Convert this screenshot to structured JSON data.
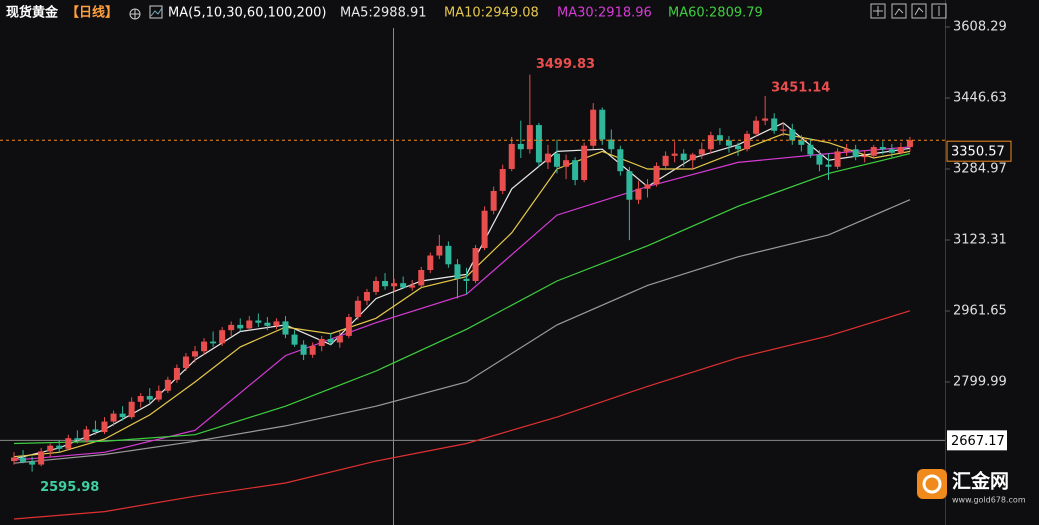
{
  "chart_data": {
    "type": "candlestick",
    "title": "现货黄金",
    "period": "【日线】",
    "indicator": "MA(5,10,30,60,100,200)",
    "up_color": "#e94e4e",
    "down_color": "#2fb79c",
    "ylim": [
      2474.4,
      3647.0
    ],
    "yticks": [
      3608.29,
      3446.63,
      3284.97,
      3123.31,
      2961.65,
      2799.99
    ],
    "crosshair_price": 2667.17,
    "ohlc": [
      [
        2620,
        2640,
        2612,
        2628
      ],
      [
        2628,
        2645,
        2615,
        2618
      ],
      [
        2618,
        2630,
        2595.98,
        2612
      ],
      [
        2612,
        2650,
        2608,
        2642
      ],
      [
        2642,
        2660,
        2630,
        2655
      ],
      [
        2655,
        2668,
        2640,
        2648
      ],
      [
        2648,
        2680,
        2644,
        2672
      ],
      [
        2672,
        2690,
        2660,
        2668
      ],
      [
        2668,
        2700,
        2662,
        2692
      ],
      [
        2692,
        2712,
        2680,
        2686
      ],
      [
        2686,
        2720,
        2682,
        2710
      ],
      [
        2710,
        2735,
        2700,
        2728
      ],
      [
        2728,
        2745,
        2712,
        2720
      ],
      [
        2720,
        2765,
        2716,
        2755
      ],
      [
        2755,
        2775,
        2742,
        2768
      ],
      [
        2768,
        2786,
        2750,
        2760
      ],
      [
        2760,
        2792,
        2755,
        2780
      ],
      [
        2780,
        2812,
        2775,
        2805
      ],
      [
        2805,
        2840,
        2798,
        2832
      ],
      [
        2832,
        2866,
        2825,
        2858
      ],
      [
        2858,
        2882,
        2845,
        2870
      ],
      [
        2870,
        2900,
        2862,
        2892
      ],
      [
        2892,
        2915,
        2880,
        2888
      ],
      [
        2888,
        2925,
        2882,
        2918
      ],
      [
        2918,
        2938,
        2905,
        2930
      ],
      [
        2930,
        2945,
        2915,
        2922
      ],
      [
        2922,
        2950,
        2918,
        2940
      ],
      [
        2940,
        2956,
        2925,
        2935
      ],
      [
        2935,
        2948,
        2918,
        2928
      ],
      [
        2928,
        2945,
        2920,
        2938
      ],
      [
        2938,
        2950,
        2900,
        2908
      ],
      [
        2908,
        2918,
        2880,
        2885
      ],
      [
        2885,
        2895,
        2850,
        2862
      ],
      [
        2862,
        2890,
        2855,
        2882
      ],
      [
        2882,
        2905,
        2870,
        2898
      ],
      [
        2898,
        2912,
        2885,
        2890
      ],
      [
        2890,
        2915,
        2878,
        2905
      ],
      [
        2905,
        2955,
        2900,
        2948
      ],
      [
        2948,
        2995,
        2942,
        2985
      ],
      [
        2985,
        3012,
        2975,
        3005
      ],
      [
        3005,
        3040,
        2998,
        3030
      ],
      [
        3030,
        3048,
        3010,
        3018
      ],
      [
        3018,
        3035,
        3005,
        3025
      ],
      [
        3025,
        3040,
        3012,
        3015
      ],
      [
        3015,
        3032,
        3008,
        3020
      ],
      [
        3020,
        3062,
        3015,
        3055
      ],
      [
        3055,
        3095,
        3048,
        3088
      ],
      [
        3088,
        3135,
        3080,
        3110
      ],
      [
        3110,
        3120,
        3060,
        3068
      ],
      [
        3068,
        3080,
        2990,
        3035
      ],
      [
        3035,
        3060,
        3000,
        3030
      ],
      [
        3030,
        3112,
        3025,
        3105
      ],
      [
        3105,
        3200,
        3100,
        3190
      ],
      [
        3190,
        3245,
        3182,
        3235
      ],
      [
        3235,
        3295,
        3228,
        3285
      ],
      [
        3285,
        3358,
        3280,
        3342
      ],
      [
        3342,
        3395,
        3310,
        3330
      ],
      [
        3330,
        3499.83,
        3320,
        3385
      ],
      [
        3385,
        3390,
        3290,
        3300
      ],
      [
        3300,
        3340,
        3285,
        3320
      ],
      [
        3320,
        3352,
        3275,
        3290
      ],
      [
        3290,
        3318,
        3262,
        3305
      ],
      [
        3305,
        3312,
        3248,
        3260
      ],
      [
        3260,
        3345,
        3255,
        3338
      ],
      [
        3338,
        3435,
        3330,
        3420
      ],
      [
        3420,
        3425,
        3340,
        3352
      ],
      [
        3352,
        3375,
        3320,
        3330
      ],
      [
        3330,
        3338,
        3270,
        3280
      ],
      [
        3280,
        3290,
        3123,
        3215
      ],
      [
        3215,
        3258,
        3205,
        3240
      ],
      [
        3240,
        3262,
        3220,
        3250
      ],
      [
        3250,
        3300,
        3245,
        3292
      ],
      [
        3292,
        3325,
        3282,
        3315
      ],
      [
        3315,
        3348,
        3300,
        3320
      ],
      [
        3320,
        3330,
        3290,
        3305
      ],
      [
        3305,
        3322,
        3285,
        3318
      ],
      [
        3318,
        3345,
        3308,
        3330
      ],
      [
        3330,
        3370,
        3320,
        3362
      ],
      [
        3362,
        3378,
        3340,
        3350
      ],
      [
        3350,
        3360,
        3322,
        3338
      ],
      [
        3338,
        3345,
        3315,
        3330
      ],
      [
        3330,
        3372,
        3325,
        3365
      ],
      [
        3365,
        3405,
        3358,
        3395
      ],
      [
        3395,
        3451.14,
        3385,
        3400
      ],
      [
        3400,
        3412,
        3365,
        3372
      ],
      [
        3372,
        3392,
        3360,
        3375
      ],
      [
        3375,
        3388,
        3340,
        3350
      ],
      [
        3350,
        3362,
        3325,
        3340
      ],
      [
        3340,
        3355,
        3310,
        3318
      ],
      [
        3318,
        3328,
        3280,
        3295
      ],
      [
        3295,
        3320,
        3260,
        3290
      ],
      [
        3290,
        3332,
        3285,
        3325
      ],
      [
        3325,
        3342,
        3315,
        3330
      ],
      [
        3330,
        3340,
        3305,
        3312
      ],
      [
        3312,
        3328,
        3300,
        3315
      ],
      [
        3315,
        3340,
        3310,
        3335
      ],
      [
        3335,
        3348,
        3318,
        3330
      ],
      [
        3330,
        3342,
        3312,
        3322
      ],
      [
        3322,
        3345,
        3318,
        3335
      ],
      [
        3335,
        3358,
        3325,
        3350.57
      ]
    ],
    "ma": [
      {
        "legend": "MA5:2988.91",
        "color": "#e8e8e8",
        "x": [
          0,
          5,
          10,
          15,
          20,
          25,
          30,
          35,
          40,
          45,
          50,
          55,
          60,
          65,
          70,
          75,
          80,
          85,
          90,
          95,
          99
        ],
        "values": [
          2625,
          2650,
          2692,
          2750,
          2850,
          2915,
          2930,
          2885,
          2990,
          3030,
          3045,
          3240,
          3325,
          3330,
          3245,
          3310,
          3340,
          3390,
          3305,
          3320,
          3332
        ]
      },
      {
        "legend": "MA10:2949.08",
        "color": "#e6c84a",
        "x": [
          0,
          5,
          10,
          15,
          20,
          25,
          30,
          35,
          40,
          45,
          50,
          55,
          60,
          65,
          70,
          75,
          80,
          85,
          90,
          95,
          99
        ],
        "values": [
          2630,
          2640,
          2670,
          2725,
          2800,
          2880,
          2925,
          2910,
          2945,
          3015,
          3040,
          3140,
          3285,
          3325,
          3285,
          3285,
          3325,
          3365,
          3345,
          3310,
          3325
        ]
      },
      {
        "legend": "MA30:2918.96",
        "color": "#d63bd6",
        "x": [
          0,
          10,
          20,
          30,
          40,
          50,
          60,
          70,
          80,
          90,
          99
        ],
        "values": [
          2622,
          2640,
          2690,
          2860,
          2935,
          3000,
          3180,
          3245,
          3300,
          3320,
          3335
        ]
      },
      {
        "legend": "MA60:2809.79",
        "color": "#3ecf3e",
        "x": [
          0,
          10,
          20,
          30,
          40,
          50,
          60,
          70,
          80,
          90,
          99
        ],
        "values": [
          2660,
          2665,
          2680,
          2745,
          2825,
          2920,
          3030,
          3110,
          3200,
          3275,
          3320
        ]
      },
      {
        "color": "#9a9a9a",
        "x": [
          0,
          10,
          20,
          30,
          40,
          50,
          60,
          70,
          80,
          90,
          99
        ],
        "values": [
          2615,
          2635,
          2665,
          2700,
          2745,
          2800,
          2930,
          3020,
          3085,
          3135,
          3215
        ]
      },
      {
        "color": "#e03030",
        "x": [
          0,
          10,
          20,
          30,
          40,
          50,
          60,
          70,
          80,
          90,
          99
        ],
        "values": [
          2488,
          2505,
          2540,
          2570,
          2620,
          2660,
          2720,
          2790,
          2855,
          2905,
          2962
        ]
      }
    ],
    "logo": {
      "name": "汇金网",
      "url": "www.gold678.com"
    }
  }
}
